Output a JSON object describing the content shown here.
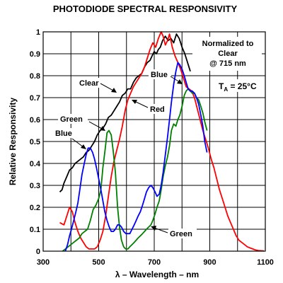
{
  "chart_data": {
    "type": "line",
    "title": "PHOTODIODE SPECTRAL RESPONSIVITY",
    "xlabel": "λ – Wavelength – nm",
    "ylabel": "Relative Responsivity",
    "xlim": [
      300,
      1100
    ],
    "ylim": [
      0,
      1
    ],
    "xticks": [
      300,
      500,
      700,
      900,
      1100
    ],
    "yticks": [
      0,
      0.1,
      0.2,
      0.3,
      0.4,
      0.5,
      0.6,
      0.7,
      0.8,
      0.9,
      1
    ],
    "xgrid": [
      300,
      400,
      500,
      600,
      700,
      800,
      900,
      1000,
      1100
    ],
    "grid": true,
    "annotation": {
      "line1": "Normalized to",
      "line2": "Clear",
      "line3": "@ 715 nm",
      "temp_prefix": "T",
      "temp_sub": "A",
      "temp_suffix": " = 25°C"
    },
    "series_labels": {
      "clear": "Clear",
      "red": "Red",
      "green_left": "Green",
      "blue_left": "Blue",
      "blue_right": "Blue",
      "green_bottom": "Green"
    },
    "series": [
      {
        "name": "Clear",
        "color": "#000000",
        "x": [
          360,
          368,
          375,
          385,
          395,
          405,
          415,
          425,
          435,
          445,
          455,
          465,
          475,
          485,
          495,
          505,
          515,
          525,
          535,
          545,
          555,
          565,
          575,
          585,
          595,
          605,
          615,
          625,
          635,
          645,
          655,
          665,
          675,
          685,
          692,
          700,
          708,
          715,
          722,
          730,
          740,
          750,
          760,
          770,
          780,
          790,
          800,
          810,
          820,
          830
        ],
        "y": [
          0.27,
          0.28,
          0.31,
          0.34,
          0.37,
          0.38,
          0.4,
          0.41,
          0.42,
          0.43,
          0.45,
          0.46,
          0.48,
          0.5,
          0.53,
          0.55,
          0.56,
          0.58,
          0.61,
          0.62,
          0.64,
          0.66,
          0.68,
          0.71,
          0.72,
          0.74,
          0.74,
          0.77,
          0.79,
          0.8,
          0.81,
          0.84,
          0.86,
          0.87,
          0.89,
          0.91,
          0.9,
          0.92,
          0.93,
          0.96,
          0.98,
          0.96,
          0.97,
          0.95,
          0.99,
          0.97,
          0.93,
          0.9,
          0.86,
          0.82
        ]
      },
      {
        "name": "Red",
        "color": "#ff0000",
        "x": [
          360,
          375,
          385,
          395,
          405,
          415,
          425,
          435,
          445,
          455,
          465,
          475,
          485,
          495,
          505,
          515,
          525,
          535,
          545,
          555,
          565,
          575,
          585,
          595,
          605,
          615,
          625,
          635,
          645,
          655,
          665,
          675,
          685,
          695,
          705,
          715,
          725,
          732,
          740,
          748,
          755,
          765,
          775,
          785,
          795,
          805,
          815,
          825,
          835,
          845,
          855,
          865,
          875,
          885,
          895,
          905,
          915,
          925,
          935,
          945,
          955,
          965,
          975,
          985,
          995,
          1005,
          1015,
          1025,
          1035,
          1045,
          1055,
          1065,
          1075,
          1085,
          1095
        ],
        "y": [
          0.13,
          0.12,
          0.16,
          0.2,
          0.18,
          0.13,
          0.09,
          0.06,
          0.04,
          0.02,
          0.01,
          0.01,
          0.01,
          0.02,
          0.05,
          0.09,
          0.16,
          0.25,
          0.34,
          0.41,
          0.46,
          0.51,
          0.57,
          0.64,
          0.69,
          0.72,
          0.75,
          0.77,
          0.79,
          0.81,
          0.84,
          0.88,
          0.92,
          0.95,
          0.93,
          0.97,
          1.0,
          0.98,
          0.94,
          0.96,
          0.99,
          0.93,
          0.89,
          0.86,
          0.83,
          0.79,
          0.75,
          0.74,
          0.73,
          0.7,
          0.65,
          0.6,
          0.55,
          0.51,
          0.47,
          0.42,
          0.38,
          0.33,
          0.28,
          0.24,
          0.2,
          0.16,
          0.13,
          0.1,
          0.07,
          0.05,
          0.04,
          0.03,
          0.02,
          0.015,
          0.01,
          0.005,
          0.003,
          0.002,
          0.001
        ]
      },
      {
        "name": "Green",
        "color": "#008000",
        "x": [
          370,
          380,
          390,
          400,
          410,
          420,
          430,
          440,
          450,
          460,
          470,
          480,
          490,
          500,
          508,
          515,
          522,
          530,
          537,
          545,
          552,
          560,
          568,
          575,
          582,
          590,
          597,
          605,
          612,
          620,
          628,
          635,
          642,
          650,
          658,
          665,
          672,
          680,
          688,
          695,
          703,
          710,
          718,
          725,
          732,
          740,
          748,
          755,
          762,
          770,
          778,
          785,
          792,
          800,
          808,
          815,
          822,
          830,
          837,
          845,
          852,
          860,
          868,
          875,
          882,
          890
        ],
        "y": [
          0.0,
          0.01,
          0.02,
          0.03,
          0.04,
          0.05,
          0.06,
          0.08,
          0.09,
          0.1,
          0.14,
          0.19,
          0.21,
          0.24,
          0.28,
          0.38,
          0.45,
          0.54,
          0.55,
          0.53,
          0.46,
          0.36,
          0.2,
          0.11,
          0.05,
          0.02,
          0.01,
          0.01,
          0.02,
          0.03,
          0.04,
          0.05,
          0.06,
          0.07,
          0.08,
          0.09,
          0.1,
          0.11,
          0.12,
          0.14,
          0.17,
          0.2,
          0.23,
          0.28,
          0.34,
          0.39,
          0.43,
          0.48,
          0.55,
          0.58,
          0.57,
          0.6,
          0.62,
          0.66,
          0.71,
          0.73,
          0.74,
          0.73,
          0.72,
          0.72,
          0.7,
          0.69,
          0.66,
          0.63,
          0.59,
          0.55
        ]
      },
      {
        "name": "Blue",
        "color": "#0000ff",
        "x": [
          380,
          388,
          395,
          402,
          410,
          418,
          425,
          432,
          440,
          448,
          455,
          462,
          470,
          478,
          485,
          492,
          500,
          508,
          515,
          522,
          530,
          538,
          545,
          553,
          560,
          568,
          575,
          582,
          590,
          598,
          605,
          612,
          620,
          628,
          635,
          642,
          650,
          658,
          665,
          672,
          680,
          688,
          695,
          703,
          710,
          718,
          725,
          732,
          740,
          748,
          755,
          762,
          770,
          778,
          785,
          792,
          800,
          808,
          815,
          822,
          830,
          837,
          845,
          852,
          860,
          868,
          875,
          882,
          890
        ],
        "y": [
          0.0,
          0.03,
          0.07,
          0.1,
          0.14,
          0.18,
          0.22,
          0.28,
          0.35,
          0.4,
          0.44,
          0.47,
          0.47,
          0.45,
          0.42,
          0.38,
          0.33,
          0.28,
          0.23,
          0.18,
          0.14,
          0.11,
          0.09,
          0.09,
          0.1,
          0.12,
          0.12,
          0.11,
          0.09,
          0.08,
          0.08,
          0.08,
          0.1,
          0.12,
          0.14,
          0.16,
          0.18,
          0.21,
          0.24,
          0.27,
          0.29,
          0.3,
          0.29,
          0.27,
          0.25,
          0.26,
          0.3,
          0.36,
          0.44,
          0.52,
          0.6,
          0.68,
          0.76,
          0.82,
          0.86,
          0.85,
          0.83,
          0.8,
          0.77,
          0.74,
          0.73,
          0.73,
          0.72,
          0.7,
          0.67,
          0.62,
          0.57,
          0.5,
          0.45
        ]
      }
    ]
  }
}
